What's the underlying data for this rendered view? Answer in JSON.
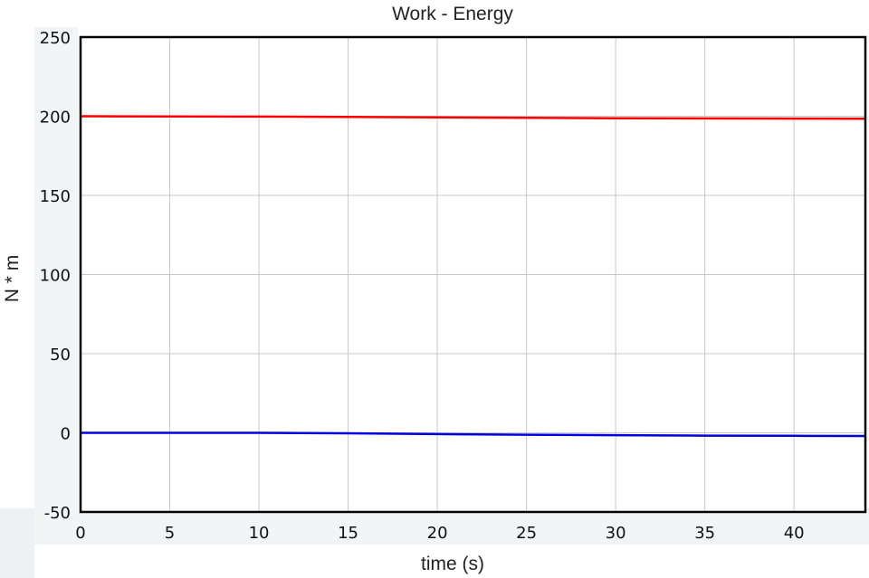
{
  "chart_data": {
    "type": "line",
    "title": "Work - Energy",
    "xlabel": "time (s)",
    "ylabel": "N * m",
    "xlim": [
      0,
      44
    ],
    "ylim": [
      -50,
      250
    ],
    "xticks": [
      0,
      5,
      10,
      15,
      20,
      25,
      30,
      35,
      40
    ],
    "yticks": [
      -50,
      0,
      50,
      100,
      150,
      200,
      250
    ],
    "grid": true,
    "series": [
      {
        "color": "#ff0000",
        "x": [
          0,
          10,
          20,
          30,
          40,
          44
        ],
        "y": [
          200,
          199.8,
          199.3,
          198.7,
          198.5,
          198.4
        ]
      },
      {
        "color": "#0000dd",
        "x": [
          0,
          10,
          15,
          20,
          25,
          30,
          35,
          40,
          44
        ],
        "y": [
          0,
          0,
          -0.3,
          -0.8,
          -1.2,
          -1.5,
          -1.8,
          -1.9,
          -2
        ]
      }
    ]
  }
}
